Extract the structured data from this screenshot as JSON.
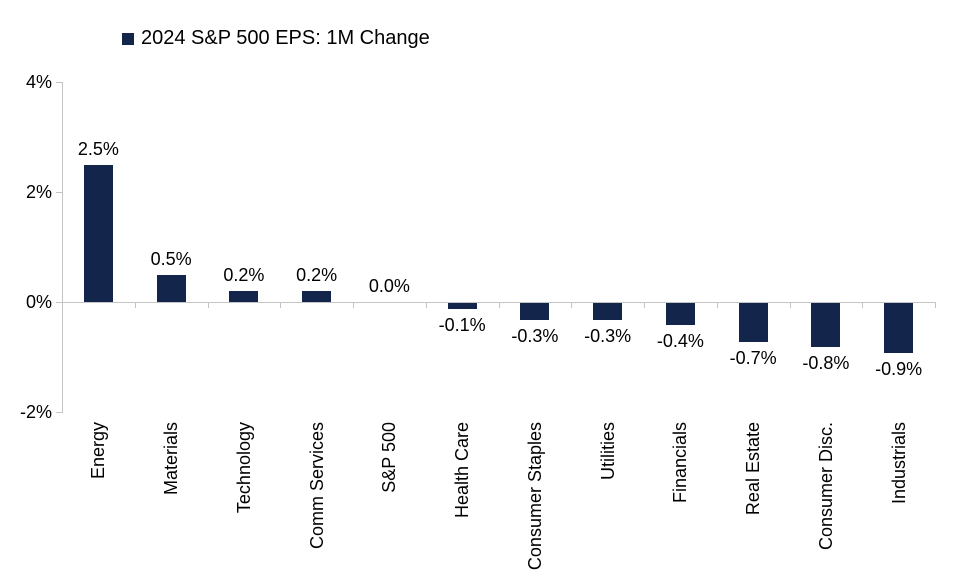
{
  "chart_data": {
    "type": "bar",
    "series_name": "2024 S&P 500 EPS: 1M Change",
    "categories": [
      "Energy",
      "Materials",
      "Technology",
      "Comm Services",
      "S&P 500",
      "Health Care",
      "Consumer Staples",
      "Utilities",
      "Financials",
      "Real Estate",
      "Consumer Disc.",
      "Industrials"
    ],
    "values": [
      2.5,
      0.5,
      0.2,
      0.2,
      0.0,
      -0.1,
      -0.3,
      -0.3,
      -0.4,
      -0.7,
      -0.8,
      -0.9
    ],
    "value_labels": [
      "2.5%",
      "0.5%",
      "0.2%",
      "0.2%",
      "0.0%",
      "-0.1%",
      "-0.3%",
      "-0.3%",
      "-0.4%",
      "-0.7%",
      "-0.8%",
      "-0.9%"
    ],
    "yticks": [
      {
        "value": 4,
        "label": "4%"
      },
      {
        "value": 2,
        "label": "2%"
      },
      {
        "value": 0,
        "label": "0%"
      },
      {
        "value": -2,
        "label": "-2%"
      }
    ],
    "ylim": [
      -2,
      4
    ],
    "xlabel": "",
    "ylabel": "",
    "title": "",
    "grid": false,
    "legend_position": "top-left",
    "bar_color": "#13254b",
    "axis_color": "#c4c4c4",
    "label_color": "#000000",
    "background_color": "#ffffff"
  }
}
